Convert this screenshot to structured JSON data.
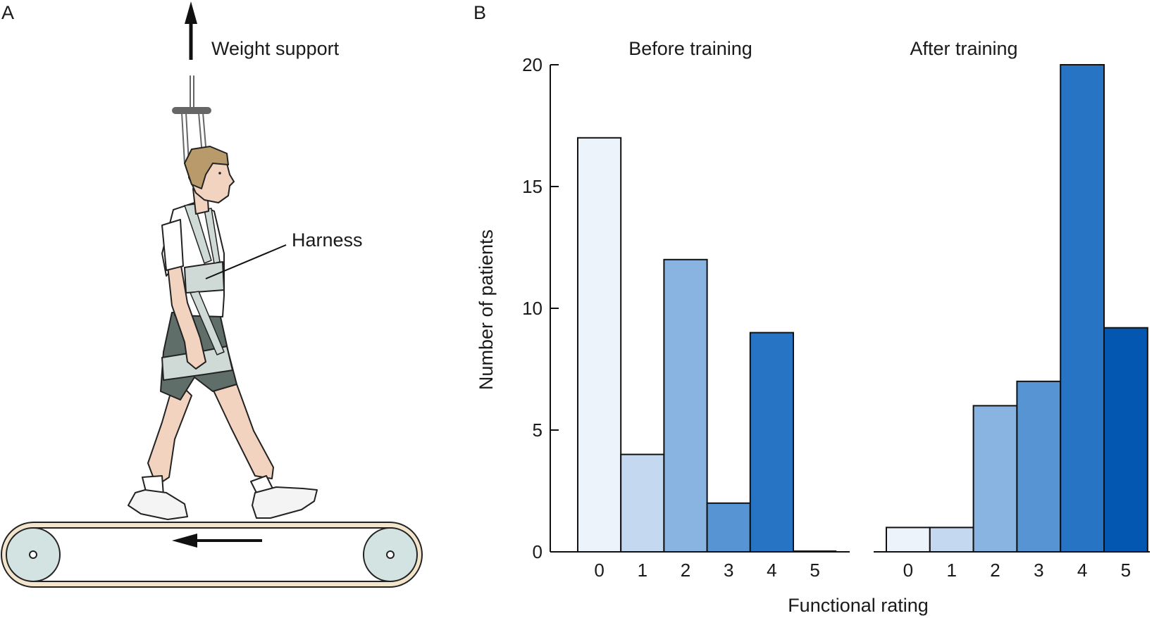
{
  "panels": {
    "a": {
      "letter": "A",
      "weight_support_label": "Weight support",
      "harness_label": "Harness"
    },
    "b": {
      "letter": "B"
    }
  },
  "colors": {
    "rating_0": "#edf3fb",
    "rating_1": "#c4d8ef",
    "rating_2": "#89b3e0",
    "rating_3": "#5694d3",
    "rating_4": "#2773c4",
    "rating_5": "#0457b1",
    "skin": "#f2d3c0",
    "hair": "#b99a6b",
    "shorts": "#5f6e69",
    "harness": "#cfdad7",
    "belt_frame": "#f2e5cc",
    "roller": "#d3e3e1"
  },
  "icons": {
    "walker": "person-walking-on-treadmill-icon",
    "weight_support_arrow": "arrow-up-icon",
    "belt_direction_arrow": "arrow-left-icon"
  },
  "chart_data": {
    "type": "bar",
    "ylabel": "Number of patients",
    "xlabel": "Functional rating",
    "ylim": [
      0,
      20
    ],
    "yticks": [
      "0",
      "5",
      "10",
      "15",
      "20"
    ],
    "categories": [
      "0",
      "1",
      "2",
      "3",
      "4",
      "5"
    ],
    "legend": "none",
    "grid": false,
    "subplots": [
      {
        "title": "Before training",
        "values": [
          17,
          4,
          12,
          2,
          9,
          0
        ]
      },
      {
        "title": "After training",
        "values": [
          1,
          1,
          6,
          7,
          20,
          9.2
        ]
      }
    ]
  }
}
